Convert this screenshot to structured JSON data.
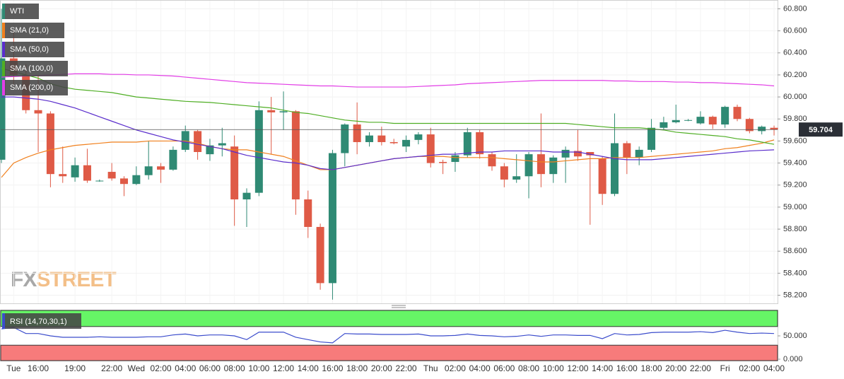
{
  "chart_data": [
    {
      "type": "candlestick",
      "name": "WTI",
      "up_color": "#2f8a74",
      "down_color": "#df5a46",
      "categories": [
        null,
        "Tue",
        null,
        "16:00",
        null,
        null,
        "19:00",
        null,
        null,
        "22:00",
        null,
        "Wed",
        null,
        "02:00",
        null,
        "04:00",
        null,
        "06:00",
        null,
        "08:00",
        null,
        "10:00",
        null,
        "12:00",
        null,
        "14:00",
        null,
        "16:00",
        null,
        "18:00",
        null,
        "20:00",
        null,
        "22:00",
        null,
        "Thu",
        null,
        "02:00",
        null,
        "04:00",
        null,
        "06:00",
        null,
        "08:00",
        null,
        "10:00",
        null,
        "12:00",
        null,
        "14:00",
        null,
        "16:00",
        null,
        "18:00",
        null,
        "20:00",
        null,
        "22:00",
        null,
        "Fri",
        null,
        "02:00",
        null,
        "04:00"
      ],
      "open": [
        59.43,
        60.35,
        60.2,
        59.88,
        59.85,
        59.3,
        59.27,
        59.38,
        59.24,
        59.32,
        59.26,
        59.21,
        59.29,
        59.37,
        59.34,
        59.52,
        59.69,
        59.48,
        59.56,
        59.55,
        59.07,
        59.13,
        59.88,
        59.86,
        59.87,
        59.07,
        58.82,
        58.31,
        59.49,
        59.75,
        59.59,
        59.65,
        59.59,
        59.55,
        59.61,
        59.66,
        59.41,
        59.41,
        59.47,
        59.68,
        59.48,
        59.37,
        59.25,
        59.28,
        59.48,
        59.3,
        59.45,
        59.51,
        59.5,
        59.44,
        59.12,
        59.58,
        59.45,
        59.52,
        59.72,
        59.77,
        59.79,
        59.76,
        59.82,
        59.75,
        59.91,
        59.8,
        59.69,
        59.72
      ],
      "high": [
        60.8,
        60.6,
        60.3,
        60.2,
        59.87,
        59.55,
        59.45,
        59.53,
        59.25,
        59.4,
        59.28,
        59.37,
        59.6,
        59.4,
        59.55,
        59.74,
        59.7,
        59.62,
        59.72,
        59.65,
        59.17,
        59.96,
        60.0,
        60.05,
        59.88,
        59.15,
        58.85,
        59.52,
        59.76,
        59.95,
        59.68,
        59.73,
        59.62,
        59.65,
        59.68,
        59.72,
        59.43,
        59.5,
        59.72,
        59.7,
        59.5,
        59.4,
        59.48,
        59.5,
        59.85,
        59.47,
        59.55,
        59.7,
        59.5,
        59.46,
        59.85,
        59.6,
        59.55,
        59.8,
        59.82,
        59.93,
        59.8,
        59.87,
        59.83,
        59.92,
        59.93,
        59.81,
        59.74,
        59.74
      ],
      "low": [
        59.4,
        60.1,
        59.85,
        59.5,
        59.18,
        59.22,
        59.23,
        59.22,
        59.23,
        59.24,
        59.1,
        59.2,
        59.25,
        59.22,
        59.33,
        59.5,
        59.43,
        59.42,
        59.46,
        58.83,
        58.82,
        59.1,
        59.48,
        59.7,
        58.93,
        58.72,
        58.25,
        58.16,
        59.37,
        59.48,
        59.55,
        59.56,
        59.57,
        59.5,
        59.57,
        59.36,
        59.3,
        59.32,
        59.45,
        59.44,
        59.33,
        59.18,
        59.22,
        59.08,
        59.18,
        59.22,
        59.22,
        59.42,
        58.84,
        59.02,
        59.1,
        59.3,
        59.38,
        59.5,
        59.7,
        59.76,
        59.78,
        59.75,
        59.71,
        59.72,
        59.78,
        59.67,
        59.66,
        59.65
      ],
      "close": [
        60.35,
        60.2,
        59.88,
        59.85,
        59.3,
        59.28,
        59.38,
        59.24,
        59.24,
        59.26,
        59.21,
        59.29,
        59.37,
        59.34,
        59.52,
        59.69,
        59.5,
        59.56,
        59.58,
        59.07,
        59.13,
        59.88,
        59.86,
        59.87,
        59.07,
        58.82,
        58.31,
        59.49,
        59.75,
        59.59,
        59.65,
        59.59,
        59.58,
        59.61,
        59.66,
        59.4,
        59.4,
        59.47,
        59.68,
        59.48,
        59.37,
        59.25,
        59.28,
        59.48,
        59.3,
        59.45,
        59.52,
        59.46,
        59.47,
        59.12,
        59.58,
        59.45,
        59.52,
        59.72,
        59.77,
        59.79,
        59.79,
        59.82,
        59.75,
        59.91,
        59.8,
        59.69,
        59.73,
        59.704
      ],
      "series": [
        {
          "name": "SMA (21,0)",
          "color": "#f0801e",
          "values": [
            59.27,
            59.4,
            59.45,
            59.49,
            59.52,
            59.54,
            59.56,
            59.57,
            59.58,
            59.59,
            59.59,
            59.59,
            59.6,
            59.6,
            59.6,
            59.6,
            59.58,
            59.55,
            59.53,
            59.52,
            59.52,
            59.5,
            59.48,
            59.46,
            59.42,
            59.38,
            59.34,
            59.34,
            59.36,
            59.38,
            59.4,
            59.42,
            59.44,
            59.45,
            59.46,
            59.46,
            59.46,
            59.45,
            59.45,
            59.45,
            59.45,
            59.44,
            59.43,
            59.42,
            59.41,
            59.41,
            59.42,
            59.43,
            59.44,
            59.44,
            59.45,
            59.45,
            59.45,
            59.46,
            59.47,
            59.48,
            59.49,
            59.5,
            59.51,
            59.53,
            59.54,
            59.56,
            59.58,
            59.61
          ]
        },
        {
          "name": "SMA (50,0)",
          "color": "#5a2dcc",
          "values": [
            60.0,
            60.0,
            59.99,
            59.98,
            59.96,
            59.93,
            59.9,
            59.86,
            59.82,
            59.78,
            59.74,
            59.7,
            59.67,
            59.64,
            59.61,
            59.59,
            59.57,
            59.55,
            59.53,
            59.5,
            59.47,
            59.45,
            59.43,
            59.41,
            59.4,
            59.38,
            59.35,
            59.34,
            59.36,
            59.38,
            59.4,
            59.42,
            59.44,
            59.45,
            59.46,
            59.47,
            59.48,
            59.48,
            59.49,
            59.5,
            59.5,
            59.51,
            59.51,
            59.51,
            59.51,
            59.5,
            59.5,
            59.5,
            59.48,
            59.46,
            59.44,
            59.43,
            59.43,
            59.43,
            59.44,
            59.45,
            59.46,
            59.47,
            59.48,
            59.49,
            59.5,
            59.51,
            59.515,
            59.52
          ]
        },
        {
          "name": "SMA (100,0)",
          "color": "#4fae24",
          "values": [
            60.26,
            60.23,
            60.2,
            60.17,
            60.12,
            60.09,
            60.07,
            60.06,
            60.05,
            60.04,
            60.02,
            60.0,
            59.99,
            59.98,
            59.97,
            59.96,
            59.955,
            59.95,
            59.94,
            59.93,
            59.92,
            59.91,
            59.9,
            59.88,
            59.86,
            59.85,
            59.83,
            59.81,
            59.79,
            59.78,
            59.77,
            59.77,
            59.76,
            59.76,
            59.76,
            59.76,
            59.76,
            59.76,
            59.76,
            59.76,
            59.76,
            59.76,
            59.76,
            59.76,
            59.76,
            59.76,
            59.76,
            59.75,
            59.74,
            59.73,
            59.72,
            59.72,
            59.72,
            59.71,
            59.7,
            59.68,
            59.67,
            59.66,
            59.65,
            59.64,
            59.62,
            59.61,
            59.59,
            59.57
          ]
        },
        {
          "name": "SMA (200,0)",
          "color": "#e23ee6",
          "values": [
            60.18,
            60.185,
            60.19,
            60.195,
            60.2,
            60.205,
            60.21,
            60.21,
            60.21,
            60.205,
            60.205,
            60.2,
            60.2,
            60.195,
            60.19,
            60.18,
            60.17,
            60.16,
            60.15,
            60.14,
            60.13,
            60.125,
            60.12,
            60.115,
            60.11,
            60.105,
            60.1,
            60.1,
            60.095,
            60.09,
            60.09,
            60.09,
            60.09,
            60.09,
            60.095,
            60.1,
            60.105,
            60.11,
            60.12,
            60.125,
            60.13,
            60.135,
            60.14,
            60.145,
            60.15,
            60.15,
            60.15,
            60.15,
            60.15,
            60.15,
            60.145,
            60.145,
            60.14,
            60.14,
            60.14,
            60.135,
            60.135,
            60.13,
            60.13,
            60.125,
            60.12,
            60.115,
            60.11,
            60.1
          ]
        }
      ],
      "last_price": 59.704,
      "ylim": [
        58.12,
        60.88
      ],
      "yticks": [
        {
          "value": 60.8,
          "label": "60.800"
        },
        {
          "value": 60.6,
          "label": "60.600"
        },
        {
          "value": 60.4,
          "label": "60.400"
        },
        {
          "value": 60.2,
          "label": "60.200"
        },
        {
          "value": 60.0,
          "label": "60.000"
        },
        {
          "value": 59.8,
          "label": "59.800"
        },
        {
          "value": 59.6,
          "label": "59.600"
        },
        {
          "value": 59.4,
          "label": "59.400"
        },
        {
          "value": 59.2,
          "label": "59.200"
        },
        {
          "value": 59.0,
          "label": "59.000"
        },
        {
          "value": 58.8,
          "label": "58.800"
        },
        {
          "value": 58.6,
          "label": "58.600"
        },
        {
          "value": 58.4,
          "label": "58.400"
        },
        {
          "value": 58.2,
          "label": "58.200"
        }
      ],
      "grid": true
    },
    {
      "type": "line",
      "name": "RSI (14,70,30,1)",
      "color": "#3b4ccc",
      "values": [
        65,
        68,
        55,
        55,
        50,
        47,
        47,
        47,
        48,
        47,
        47,
        47,
        48,
        48,
        52,
        54,
        50,
        52,
        52,
        50,
        42,
        58,
        58,
        58,
        47,
        42,
        37,
        35,
        55,
        54,
        54,
        53,
        53,
        53,
        54,
        50,
        50,
        51,
        54,
        51,
        50,
        48,
        49,
        52,
        49,
        52,
        52,
        51,
        51,
        44,
        55,
        52,
        53,
        57,
        58,
        58,
        58,
        59,
        57,
        62,
        58,
        55,
        56,
        55
      ],
      "overbought": 70,
      "oversold": 30,
      "overbought_color": "#66f566",
      "oversold_color": "#f77b7b",
      "ylim": [
        0,
        100
      ],
      "yticks": [
        {
          "value": 50,
          "label": "50.000"
        },
        {
          "value": 0,
          "label": "0.000"
        }
      ]
    }
  ],
  "watermark": [
    "FX",
    "STREET"
  ]
}
